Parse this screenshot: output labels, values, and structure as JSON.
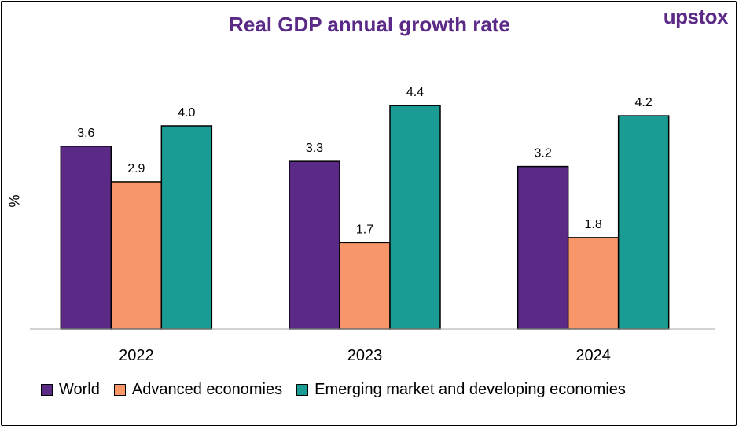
{
  "brand": "upstox",
  "chart_data": {
    "type": "bar",
    "title": "Real GDP annual growth rate",
    "ylabel": "%",
    "xlabel": "",
    "categories": [
      "2022",
      "2023",
      "2024"
    ],
    "ylim": [
      0,
      5.0
    ],
    "grid": false,
    "legend_position": "bottom",
    "series": [
      {
        "name": "World",
        "color": "#5b2a86",
        "values": [
          3.6,
          3.3,
          3.2
        ],
        "labels": [
          "3.6",
          "3.3",
          "3.2"
        ]
      },
      {
        "name": "Advanced economies",
        "color": "#f79668",
        "values": [
          2.9,
          1.7,
          1.8
        ],
        "labels": [
          "2.9",
          "1.7",
          "1.8"
        ]
      },
      {
        "name": "Emerging market and developing economies",
        "color": "#1a9c94",
        "values": [
          4.0,
          4.4,
          4.2
        ],
        "labels": [
          "4.0",
          "4.4",
          "4.2"
        ]
      }
    ]
  }
}
